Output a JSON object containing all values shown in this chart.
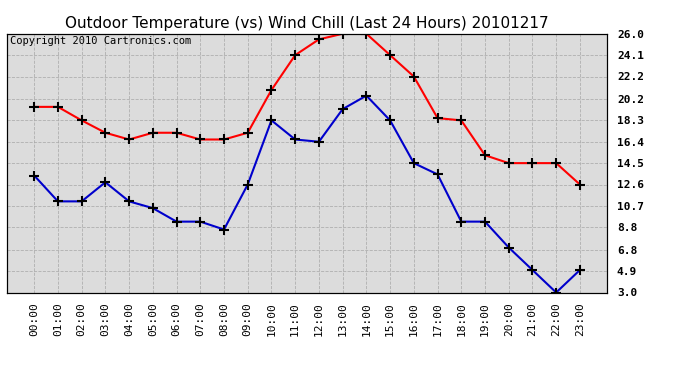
{
  "title": "Outdoor Temperature (vs) Wind Chill (Last 24 Hours) 20101217",
  "copyright_text": "Copyright 2010 Cartronics.com",
  "x_labels": [
    "00:00",
    "01:00",
    "02:00",
    "03:00",
    "04:00",
    "05:00",
    "06:00",
    "07:00",
    "08:00",
    "09:00",
    "10:00",
    "11:00",
    "12:00",
    "13:00",
    "14:00",
    "15:00",
    "16:00",
    "17:00",
    "18:00",
    "19:00",
    "20:00",
    "21:00",
    "22:00",
    "23:00"
  ],
  "red_data": [
    19.5,
    19.5,
    18.3,
    17.2,
    16.6,
    17.2,
    17.2,
    16.6,
    16.6,
    17.2,
    21.0,
    24.1,
    25.5,
    26.0,
    26.0,
    24.1,
    22.2,
    18.5,
    18.3,
    15.2,
    14.5,
    14.5,
    14.5,
    12.6
  ],
  "blue_data": [
    13.4,
    11.1,
    11.1,
    12.8,
    11.1,
    10.5,
    9.3,
    9.3,
    8.6,
    12.6,
    18.3,
    16.6,
    16.4,
    19.3,
    20.5,
    18.3,
    14.5,
    13.5,
    9.3,
    9.3,
    7.0,
    5.0,
    3.0,
    5.0
  ],
  "ylim": [
    3.0,
    26.0
  ],
  "yticks": [
    3.0,
    4.9,
    6.8,
    8.8,
    10.7,
    12.6,
    14.5,
    16.4,
    18.3,
    20.2,
    22.2,
    24.1,
    26.0
  ],
  "ytick_labels": [
    "3.0",
    "4.9",
    "6.8",
    "8.8",
    "10.7",
    "12.6",
    "14.5",
    "16.4",
    "18.3",
    "20.2",
    "22.2",
    "24.1",
    "26.0"
  ],
  "red_color": "#ff0000",
  "blue_color": "#0000cc",
  "bg_color": "#ffffff",
  "plot_bg_color": "#dcdcdc",
  "grid_color": "#aaaaaa",
  "title_fontsize": 11,
  "tick_fontsize": 8,
  "copyright_fontsize": 7.5
}
